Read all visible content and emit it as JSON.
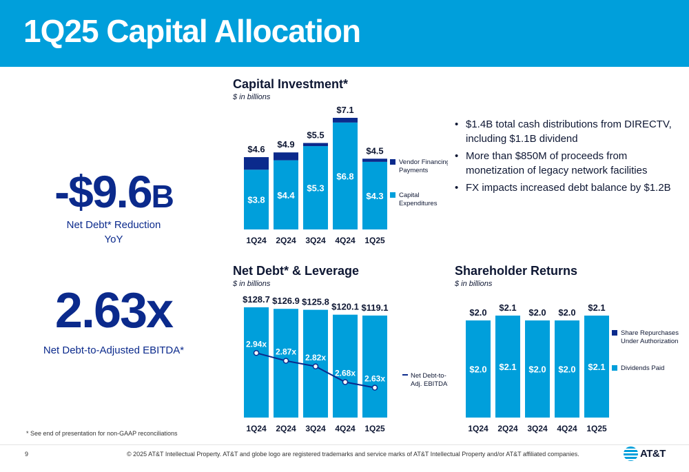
{
  "header": {
    "title": "1Q25 Capital Allocation"
  },
  "kpis": {
    "net_debt_reduction": {
      "value_main": "-$9.6",
      "value_suffix": "B",
      "label_line1": "Net Debt* Reduction",
      "label_line2": "YoY"
    },
    "leverage": {
      "value": "2.63x",
      "label": "Net Debt-to-Adjusted EBITDA*"
    }
  },
  "bullets": [
    "$1.4B total cash distributions from DIRECTV, including $1.1B dividend",
    "More than $850M of proceeds from monetization of legacy network facilities",
    "FX impacts increased debt balance by $1.2B"
  ],
  "footnote": "* See end of presentation for non-GAAP reconciliations",
  "footer": {
    "page_number": "9",
    "copyright": "© 2025 AT&T Intellectual Property.  AT&T and globe logo are registered trademarks and service marks of AT&T Intellectual Property and/or AT&T affiliated companies.",
    "logo_text": "AT&T"
  },
  "colors": {
    "light_blue": "#009fdb",
    "dark_blue": "#0b2a8c",
    "header_bg": "#009fdb"
  },
  "chart_data": [
    {
      "id": "capital_investment",
      "type": "bar",
      "stacked": true,
      "title": "Capital Investment*",
      "subtitle": "$ in billions",
      "categories": [
        "1Q24",
        "2Q24",
        "3Q24",
        "4Q24",
        "1Q25"
      ],
      "series": [
        {
          "name": "Capital Expenditures",
          "values": [
            3.8,
            4.4,
            5.3,
            6.8,
            4.3
          ],
          "labels": [
            "$3.8",
            "$4.4",
            "$5.3",
            "$6.8",
            "$4.3"
          ],
          "color": "#009fdb"
        },
        {
          "name": "Vendor Financing Payments",
          "values": [
            0.8,
            0.5,
            0.2,
            0.3,
            0.2
          ],
          "color": "#0b2a8c"
        }
      ],
      "legend": [
        {
          "label_line1": "Vendor Financing",
          "label_line2": "Payments",
          "color": "#0b2a8c"
        },
        {
          "label_line1": "Capital",
          "label_line2": "Expenditures",
          "color": "#009fdb"
        }
      ],
      "totals": [
        4.6,
        4.9,
        5.5,
        7.1,
        4.5
      ],
      "total_labels": [
        "$4.6",
        "$4.9",
        "$5.5",
        "$7.1",
        "$4.5"
      ],
      "ylim": [
        0,
        7.1
      ],
      "legend_position": "right"
    },
    {
      "id": "net_debt_leverage",
      "type": "bar",
      "title": "Net Debt* & Leverage",
      "subtitle": "$ in billions",
      "categories": [
        "1Q24",
        "2Q24",
        "3Q24",
        "4Q24",
        "1Q25"
      ],
      "series": [
        {
          "name": "Net Debt",
          "values": [
            128.7,
            126.9,
            125.8,
            120.1,
            119.1
          ],
          "labels": [
            "$128.7",
            "$126.9",
            "$125.8",
            "$120.1",
            "$119.1"
          ],
          "color": "#009fdb"
        },
        {
          "name": "Net Debt-to-Adj. EBITDA*",
          "type": "line",
          "values": [
            2.94,
            2.87,
            2.82,
            2.68,
            2.63
          ],
          "labels": [
            "2.94x",
            "2.87x",
            "2.82x",
            "2.68x",
            "2.63x"
          ],
          "color": "#0b2a8c"
        }
      ],
      "legend": [
        {
          "label_line1": "Net Debt-to-",
          "label_line2": "Adj. EBITDA*",
          "color": "#0b2a8c"
        }
      ],
      "ylim": [
        0,
        128.7
      ],
      "legend_position": "right"
    },
    {
      "id": "shareholder_returns",
      "type": "bar",
      "stacked": true,
      "title": "Shareholder Returns",
      "subtitle": "$ in billions",
      "categories": [
        "1Q24",
        "2Q24",
        "3Q24",
        "4Q24",
        "1Q25"
      ],
      "series": [
        {
          "name": "Dividends Paid",
          "values": [
            2.0,
            2.1,
            2.0,
            2.0,
            2.1
          ],
          "labels": [
            "$2.0",
            "$2.1",
            "$2.0",
            "$2.0",
            "$2.1"
          ],
          "color": "#009fdb"
        },
        {
          "name": "Share Repurchases Under Authorization",
          "values": [
            0,
            0,
            0,
            0,
            0
          ],
          "color": "#0b2a8c"
        }
      ],
      "legend": [
        {
          "label_line1": "Share Repurchases",
          "label_line2": "Under Authorization",
          "color": "#0b2a8c"
        },
        {
          "label_line1": "Dividends Paid",
          "label_line2": "",
          "color": "#009fdb"
        }
      ],
      "total_labels": [
        "$2.0",
        "$2.1",
        "$2.0",
        "$2.0",
        "$2.1"
      ],
      "ylim": [
        0,
        2.1
      ],
      "legend_position": "right"
    }
  ]
}
